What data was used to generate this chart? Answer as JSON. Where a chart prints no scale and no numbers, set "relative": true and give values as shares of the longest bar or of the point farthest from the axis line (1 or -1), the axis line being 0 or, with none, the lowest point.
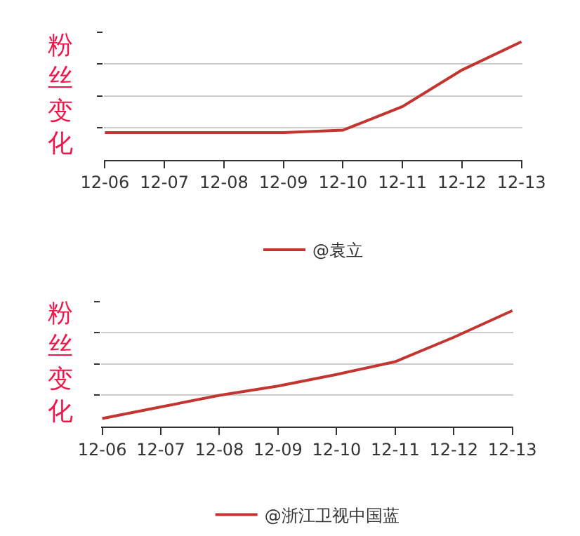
{
  "chart_data": [
    {
      "type": "line",
      "ylabel": "粉丝变化",
      "relative": true,
      "categories": [
        "12-06",
        "12-07",
        "12-08",
        "12-09",
        "12-10",
        "12-11",
        "12-12",
        "12-13"
      ],
      "grid": "y",
      "legend": "bottom",
      "marker": "none",
      "line_style": "solid",
      "series": [
        {
          "name": "@袁立",
          "color": "#c23531",
          "values": [
            0.23,
            0.23,
            0.23,
            0.23,
            0.25,
            0.45,
            0.76,
            1
          ]
        }
      ]
    },
    {
      "type": "line",
      "ylabel": "粉丝变化",
      "relative": true,
      "categories": [
        "12-06",
        "12-07",
        "12-08",
        "12-09",
        "12-10",
        "12-11",
        "12-12",
        "12-13"
      ],
      "grid": "y",
      "legend": "bottom",
      "marker": "none",
      "line_style": "solid",
      "series": [
        {
          "name": "@浙江卫视中国蓝",
          "color": "#c23531",
          "values": [
            0.07,
            0.17,
            0.27,
            0.35,
            0.45,
            0.56,
            0.77,
            1
          ]
        }
      ]
    }
  ]
}
